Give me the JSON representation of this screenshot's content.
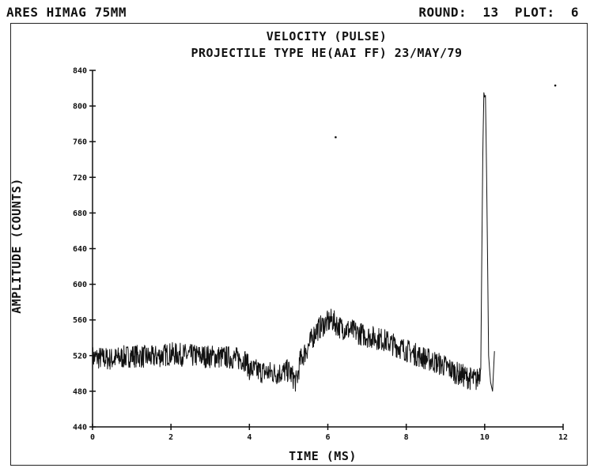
{
  "header": {
    "left": "ARES HIMAG 75MM",
    "round_label": "ROUND:",
    "round_value": "13",
    "plot_label": "PLOT:",
    "plot_value": "6"
  },
  "chart_data": {
    "type": "line",
    "title": "VELOCITY (PULSE)",
    "subtitle": "PROJECTILE TYPE HE(AAI FF) 23/MAY/79",
    "xlabel": "TIME (MS)",
    "ylabel": "AMPLITUDE (COUNTS)",
    "xlim": [
      0,
      12
    ],
    "ylim": [
      440,
      840
    ],
    "xticks": [
      0,
      2,
      4,
      6,
      8,
      10,
      12
    ],
    "yticks": [
      440,
      480,
      520,
      560,
      600,
      640,
      680,
      720,
      760,
      800,
      840
    ],
    "grid": false,
    "series": [
      {
        "x": [
          0.0,
          0.5,
          1.0,
          1.5,
          2.0,
          2.5,
          3.0,
          3.5,
          3.9,
          4.0,
          4.3,
          4.7,
          5.0,
          5.2,
          5.3,
          5.5,
          5.7,
          5.9,
          6.1,
          6.3,
          6.6,
          7.0,
          7.4,
          7.8,
          8.2,
          8.6,
          9.0,
          9.3,
          9.6,
          9.8,
          9.9,
          9.95,
          9.98,
          10.0,
          10.02,
          10.05,
          10.1,
          10.15,
          10.2,
          10.25
        ],
        "y": [
          518,
          516,
          520,
          518,
          522,
          520,
          519,
          518,
          515,
          505,
          502,
          500,
          503,
          490,
          515,
          530,
          548,
          555,
          560,
          552,
          548,
          542,
          538,
          530,
          522,
          515,
          508,
          500,
          495,
          492,
          505,
          740,
          815,
          810,
          812,
          720,
          520,
          490,
          480,
          525
        ]
      }
    ],
    "markers": [
      {
        "x": 6.2,
        "y": 765
      },
      {
        "x": 11.8,
        "y": 823
      }
    ]
  }
}
